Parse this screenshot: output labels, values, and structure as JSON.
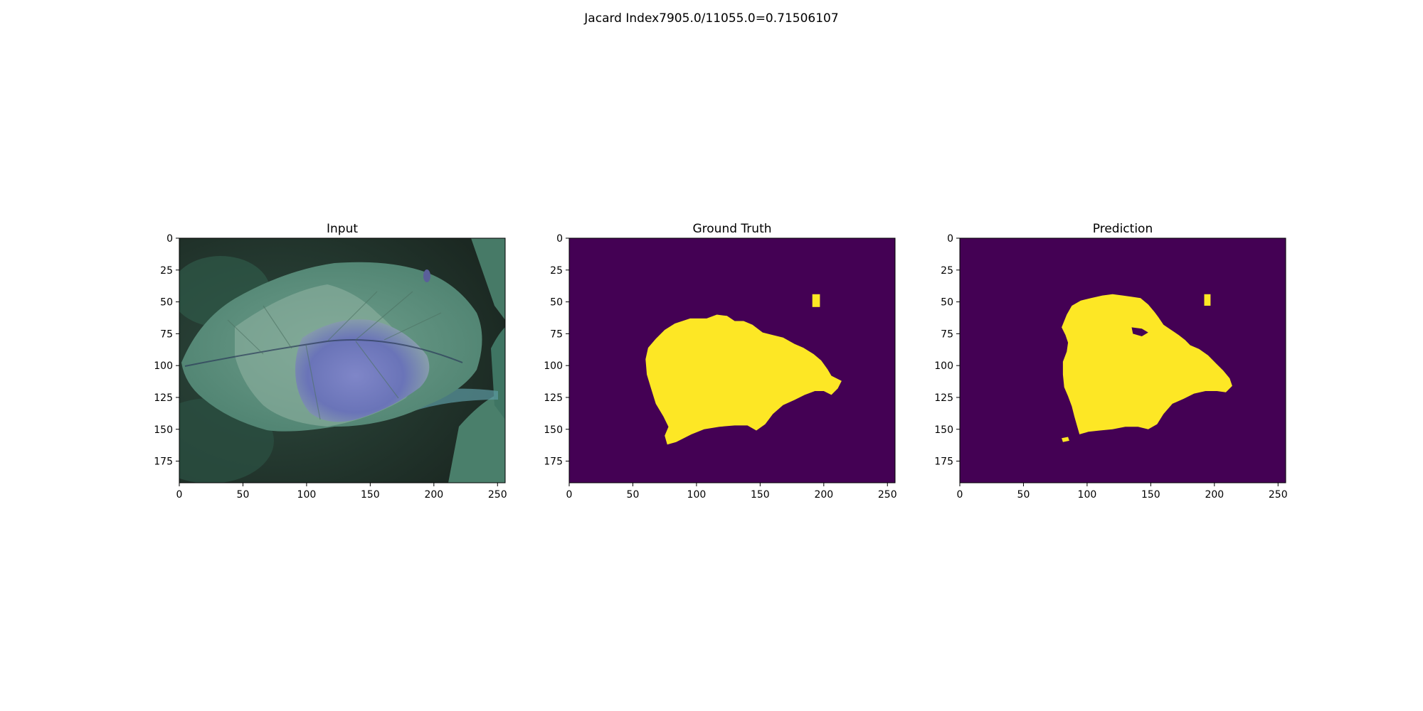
{
  "suptitle": "Jacard Index7905.0/11055.0=0.71506107",
  "colors": {
    "background_class": "#440154",
    "foreground_class": "#fde725"
  },
  "chart_data": [
    {
      "type": "heatmap",
      "title": "Input",
      "image": "rgb photo of a potato leaf with a purple-blue lesion, shown in false colour",
      "xlim": [
        0,
        256
      ],
      "ylim": [
        192,
        0
      ],
      "xticks": [
        0,
        50,
        100,
        150,
        200,
        250
      ],
      "yticks": [
        0,
        25,
        50,
        75,
        100,
        125,
        150,
        175
      ]
    },
    {
      "type": "heatmap",
      "title": "Ground Truth",
      "image": "binary lesion mask",
      "xlim": [
        0,
        256
      ],
      "ylim": [
        192,
        0
      ],
      "xticks": [
        0,
        50,
        100,
        150,
        200,
        250
      ],
      "yticks": [
        0,
        25,
        50,
        75,
        100,
        125,
        150,
        175
      ],
      "lesion_outline": [
        [
          60,
          95
        ],
        [
          62,
          86
        ],
        [
          68,
          79
        ],
        [
          75,
          72
        ],
        [
          83,
          67
        ],
        [
          95,
          63
        ],
        [
          108,
          63
        ],
        [
          116,
          60
        ],
        [
          124,
          61
        ],
        [
          130,
          65
        ],
        [
          137,
          65
        ],
        [
          144,
          68
        ],
        [
          152,
          74
        ],
        [
          160,
          76
        ],
        [
          168,
          78
        ],
        [
          177,
          83
        ],
        [
          184,
          86
        ],
        [
          192,
          91
        ],
        [
          198,
          96
        ],
        [
          203,
          103
        ],
        [
          206,
          108
        ],
        [
          214,
          112
        ],
        [
          211,
          118
        ],
        [
          206,
          123
        ],
        [
          200,
          120
        ],
        [
          193,
          120
        ],
        [
          185,
          123
        ],
        [
          177,
          127
        ],
        [
          168,
          131
        ],
        [
          160,
          138
        ],
        [
          154,
          146
        ],
        [
          147,
          151
        ],
        [
          140,
          147
        ],
        [
          130,
          147
        ],
        [
          118,
          148
        ],
        [
          106,
          150
        ],
        [
          96,
          154
        ],
        [
          84,
          160
        ],
        [
          77,
          162
        ],
        [
          75,
          155
        ],
        [
          78,
          148
        ],
        [
          74,
          140
        ],
        [
          68,
          130
        ],
        [
          64,
          117
        ],
        [
          61,
          107
        ]
      ],
      "spots": [
        [
          [
            191,
            44
          ],
          [
            197,
            44
          ],
          [
            197,
            54
          ],
          [
            191,
            54
          ]
        ]
      ]
    },
    {
      "type": "heatmap",
      "title": "Prediction",
      "image": "binary lesion mask",
      "xlim": [
        0,
        256
      ],
      "ylim": [
        192,
        0
      ],
      "xticks": [
        0,
        50,
        100,
        150,
        200,
        250
      ],
      "yticks": [
        0,
        25,
        50,
        75,
        100,
        125,
        150,
        175
      ],
      "lesion_outline": [
        [
          80,
          70
        ],
        [
          84,
          60
        ],
        [
          88,
          53
        ],
        [
          95,
          49
        ],
        [
          103,
          47
        ],
        [
          112,
          45
        ],
        [
          120,
          44
        ],
        [
          128,
          45
        ],
        [
          135,
          46
        ],
        [
          142,
          47
        ],
        [
          148,
          52
        ],
        [
          153,
          58
        ],
        [
          156,
          62
        ],
        [
          160,
          68
        ],
        [
          166,
          72
        ],
        [
          172,
          76
        ],
        [
          177,
          80
        ],
        [
          181,
          84
        ],
        [
          188,
          87
        ],
        [
          195,
          92
        ],
        [
          201,
          98
        ],
        [
          207,
          104
        ],
        [
          212,
          110
        ],
        [
          214,
          116
        ],
        [
          209,
          121
        ],
        [
          202,
          120
        ],
        [
          193,
          120
        ],
        [
          184,
          122
        ],
        [
          176,
          126
        ],
        [
          167,
          130
        ],
        [
          160,
          138
        ],
        [
          155,
          146
        ],
        [
          148,
          150
        ],
        [
          140,
          148
        ],
        [
          130,
          148
        ],
        [
          120,
          150
        ],
        [
          110,
          151
        ],
        [
          101,
          152
        ],
        [
          94,
          154
        ],
        [
          92,
          147
        ],
        [
          90,
          140
        ],
        [
          88,
          132
        ],
        [
          85,
          124
        ],
        [
          82,
          117
        ],
        [
          81,
          107
        ],
        [
          81,
          97
        ],
        [
          84,
          89
        ],
        [
          85,
          82
        ],
        [
          83,
          76
        ]
      ],
      "holes": [
        [
          [
            135,
            70
          ],
          [
            143,
            71
          ],
          [
            148,
            74
          ],
          [
            143,
            77
          ],
          [
            136,
            75
          ]
        ]
      ],
      "spots": [
        [
          [
            192,
            44
          ],
          [
            197,
            44
          ],
          [
            197,
            53
          ],
          [
            192,
            53
          ]
        ],
        [
          [
            80,
            157
          ],
          [
            85,
            156
          ],
          [
            86,
            159
          ],
          [
            81,
            160
          ]
        ]
      ]
    }
  ]
}
